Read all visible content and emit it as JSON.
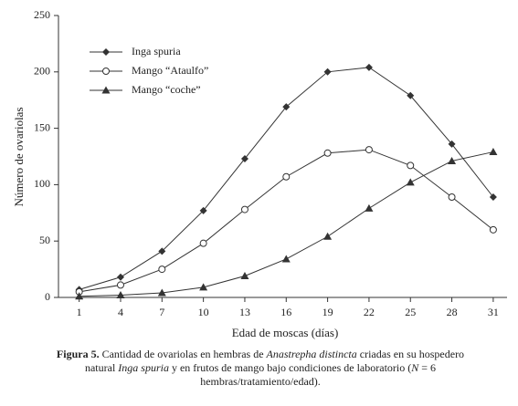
{
  "chart_data": {
    "type": "line",
    "x_label": "Edad de moscas (días)",
    "y_label": "Número de ovariolas",
    "x": [
      1,
      4,
      7,
      10,
      13,
      16,
      19,
      22,
      25,
      28,
      31
    ],
    "series": [
      {
        "name": "Inga spuria",
        "color": "#333333",
        "marker": "diamond",
        "values": [
          7,
          18,
          41,
          77,
          123,
          169,
          200,
          204,
          179,
          136,
          89
        ]
      },
      {
        "name": "Mango “Ataulfo”",
        "color": "#333333",
        "marker": "circle",
        "values": [
          5,
          11,
          25,
          48,
          78,
          107,
          128,
          131,
          117,
          89,
          60
        ]
      },
      {
        "name": "Mango “coche”",
        "color": "#333333",
        "marker": "triangle",
        "values": [
          1,
          2,
          4,
          9,
          19,
          34,
          54,
          79,
          102,
          121,
          129
        ]
      }
    ],
    "xlim": [
      -0.5,
      32
    ],
    "xticks": [
      1,
      4,
      7,
      10,
      13,
      16,
      19,
      22,
      25,
      28,
      31
    ],
    "ylim": [
      0,
      250
    ],
    "yticks": [
      0,
      50,
      100,
      150,
      200,
      250
    ],
    "legend": "upper-left",
    "caption": [
      "Figura 5.",
      " Cantidad de ovariolas en hembras de ",
      "Anastrepha distincta",
      " criadas en su hospedero natural ",
      "Inga spuria",
      " y en frutos de mango bajo condiciones de laboratorio (",
      "N",
      " = 6 hembras/tratamiento/edad)."
    ]
  }
}
